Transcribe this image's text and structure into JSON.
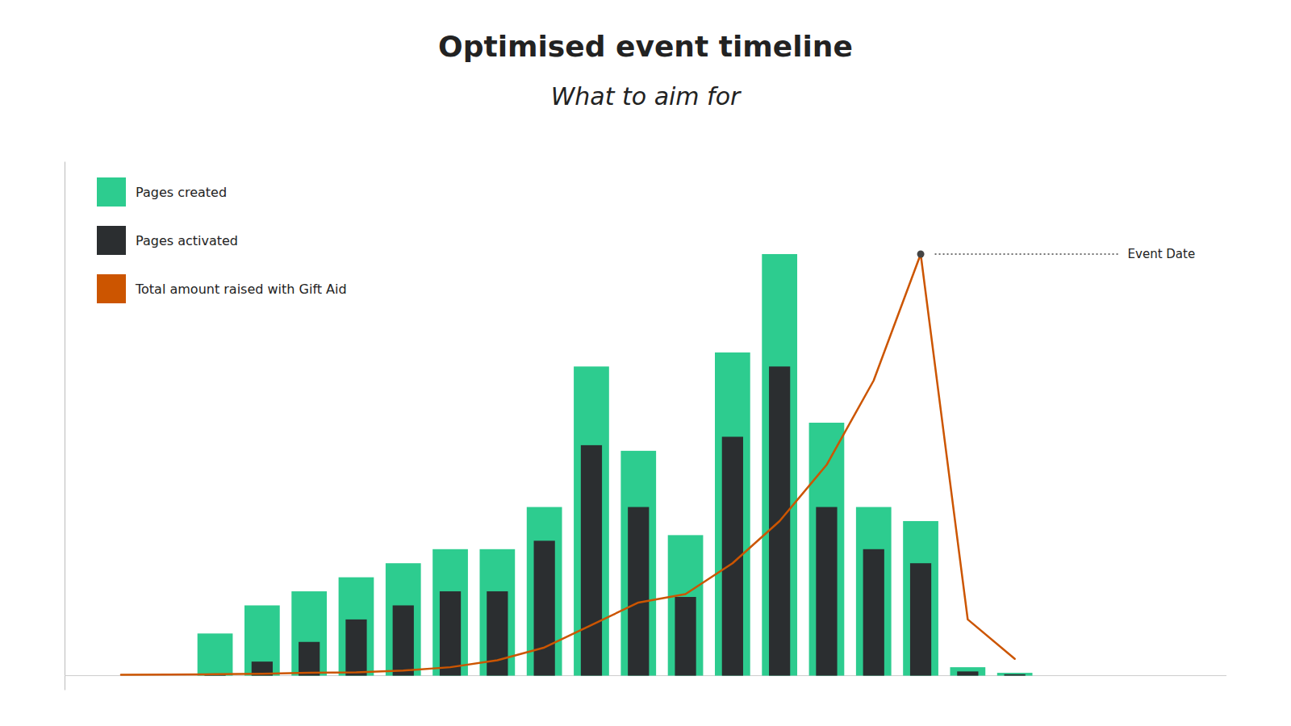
{
  "chart_data": {
    "type": "bar",
    "title": "Optimised event timeline",
    "subtitle": "What to aim for",
    "categories": [
      null,
      null,
      null,
      null,
      null,
      null,
      null,
      null,
      null,
      null,
      null,
      null,
      null,
      null,
      null,
      null,
      null,
      null,
      null,
      null
    ],
    "series": [
      {
        "name": "Pages created",
        "type": "bar",
        "color": "#2dcc8f",
        "values": [
          0,
          0,
          1.5,
          2.5,
          3.0,
          3.5,
          4.0,
          4.5,
          4.5,
          6.0,
          11.0,
          8.0,
          5.0,
          11.5,
          15.0,
          9.0,
          6.0,
          5.5,
          0.3,
          0.1
        ]
      },
      {
        "name": "Pages activated",
        "type": "bar",
        "color": "#2b2e30",
        "values": [
          0,
          0,
          0.05,
          0.5,
          1.2,
          2.0,
          2.5,
          3.0,
          3.0,
          4.8,
          8.2,
          6.0,
          2.8,
          8.5,
          11.0,
          6.0,
          4.5,
          4.0,
          0.15,
          0.05
        ]
      },
      {
        "name": "Total amount raised with Gift Aid",
        "type": "line",
        "color": "#cc5500",
        "values": [
          0.03,
          0.04,
          0.05,
          0.07,
          0.1,
          0.12,
          0.18,
          0.3,
          0.55,
          1.0,
          1.8,
          2.6,
          2.9,
          4.0,
          5.5,
          7.5,
          10.5,
          15.0,
          2.0,
          0.6
        ]
      }
    ],
    "ylim": [
      -0.5,
      18.3
    ],
    "tick_labels": false,
    "grid": false,
    "stacked": false,
    "legend": "upper left",
    "annotations": [
      {
        "text": "Event Date",
        "series": 2,
        "index": 17
      }
    ]
  }
}
